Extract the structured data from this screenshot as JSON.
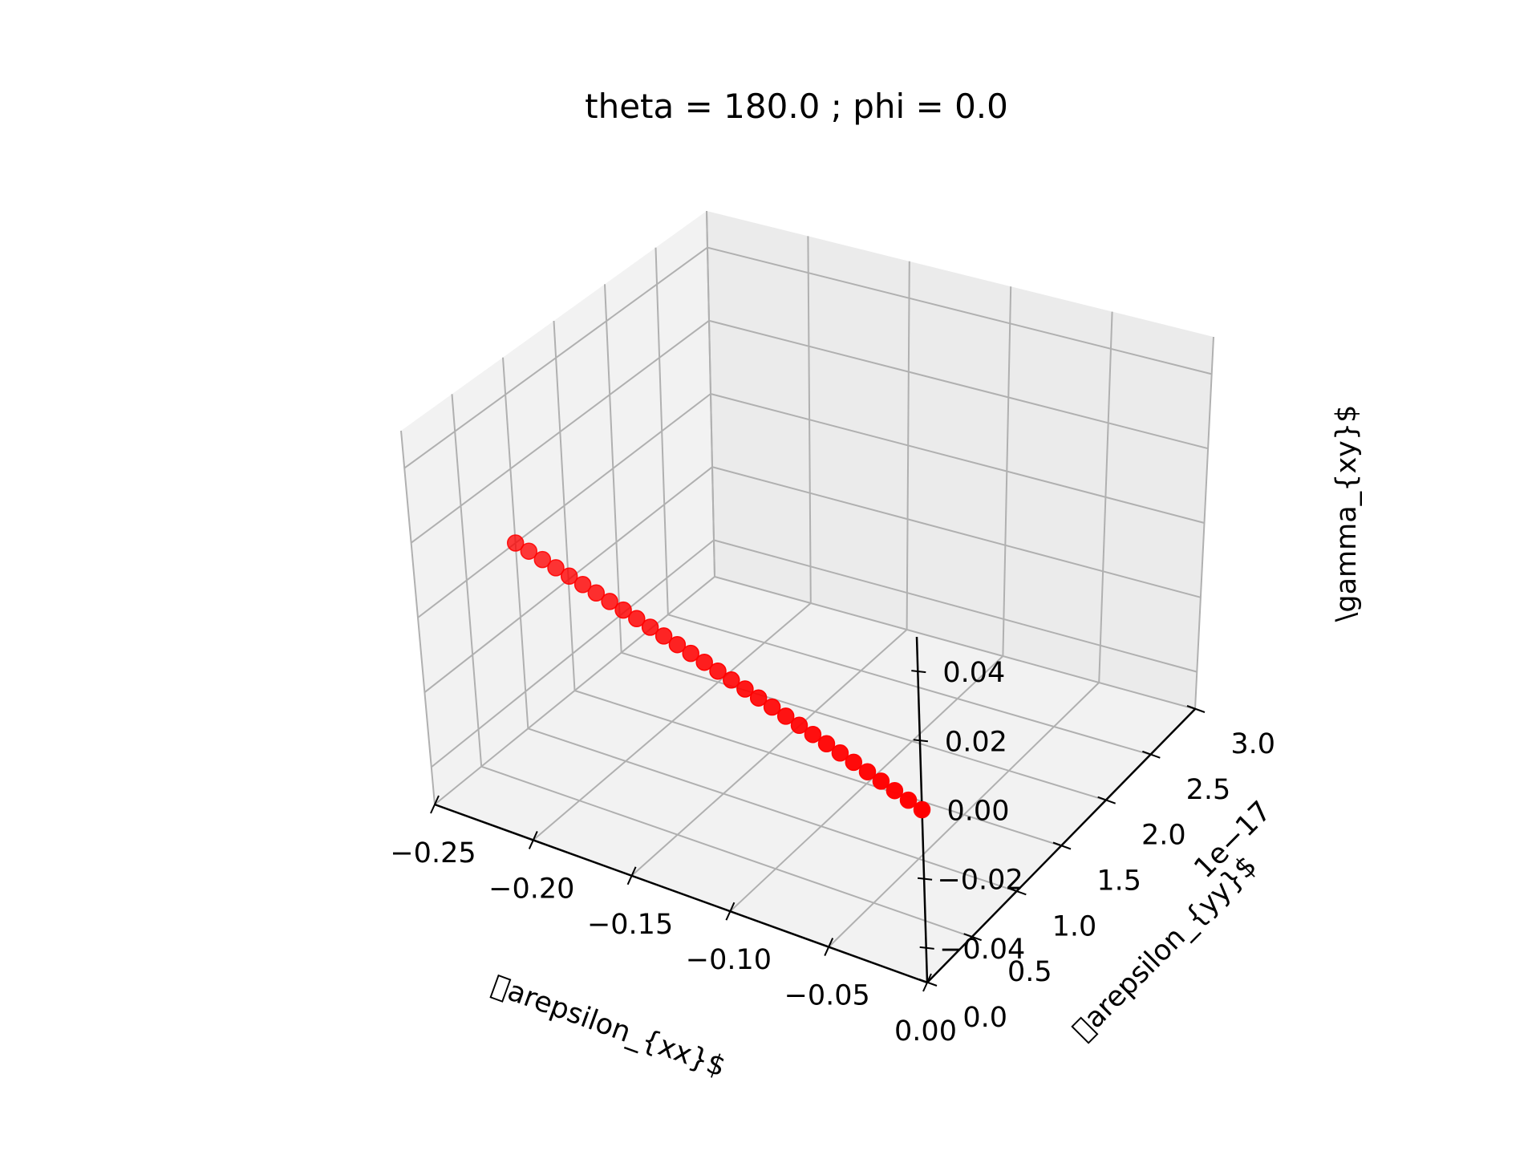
{
  "chart_data": {
    "type": "scatter",
    "projection": "3d",
    "title": "theta = 180.0 ; phi = 0.0",
    "xlabel": "\u0000arepsilon_{xx}$",
    "ylabel": "\u0000arepsilon_{yy}$",
    "zlabel": "\\gamma_{xy}$",
    "y_offset_label": "1e−17",
    "xlim": [
      -0.25,
      0.0
    ],
    "ylim": [
      0.0,
      3.0
    ],
    "zlim": [
      -0.05,
      0.05
    ],
    "x_ticks": [
      "−0.25",
      "−0.20",
      "−0.15",
      "−0.10",
      "−0.05",
      "0.00"
    ],
    "y_ticks": [
      "0.0",
      "0.5",
      "1.0",
      "1.5",
      "2.0",
      "2.5",
      "3.0"
    ],
    "z_ticks": [
      "−0.04",
      "−0.02",
      "0.00",
      "0.02",
      "0.04"
    ],
    "grid": true,
    "marker_color": "#ff0000",
    "series": [
      {
        "x": [
          0.0,
          -0.0083,
          -0.0167,
          -0.025,
          -0.0333,
          -0.0417,
          -0.05,
          -0.0583,
          -0.0667,
          -0.075,
          -0.0833,
          -0.0917,
          -0.1,
          -0.1083,
          -0.1167,
          -0.125,
          -0.1333,
          -0.1417,
          -0.15,
          -0.1583,
          -0.1667,
          -0.175,
          -0.1833,
          -0.1917,
          -0.2,
          -0.2083,
          -0.2167,
          -0.225,
          -0.2333,
          -0.2417,
          -0.25
        ],
        "y": [
          0.0,
          0.0333,
          0.0667,
          0.1,
          0.1333,
          0.1667,
          0.2,
          0.2333,
          0.2667,
          0.3,
          0.3333,
          0.3667,
          0.4,
          0.4333,
          0.4667,
          0.5,
          0.5333,
          0.5667,
          0.6,
          0.6333,
          0.6667,
          0.7,
          0.7333,
          0.7667,
          0.8,
          0.8333,
          0.8667,
          0.9,
          0.9333,
          0.9667,
          1.0
        ],
        "z": [
          0,
          0,
          0,
          0,
          0,
          0,
          0,
          0,
          0,
          0,
          0,
          0,
          0,
          0,
          0,
          0,
          0,
          0,
          0,
          0,
          0,
          0,
          0,
          0,
          0,
          0,
          0,
          0,
          0,
          0,
          0
        ]
      }
    ]
  }
}
